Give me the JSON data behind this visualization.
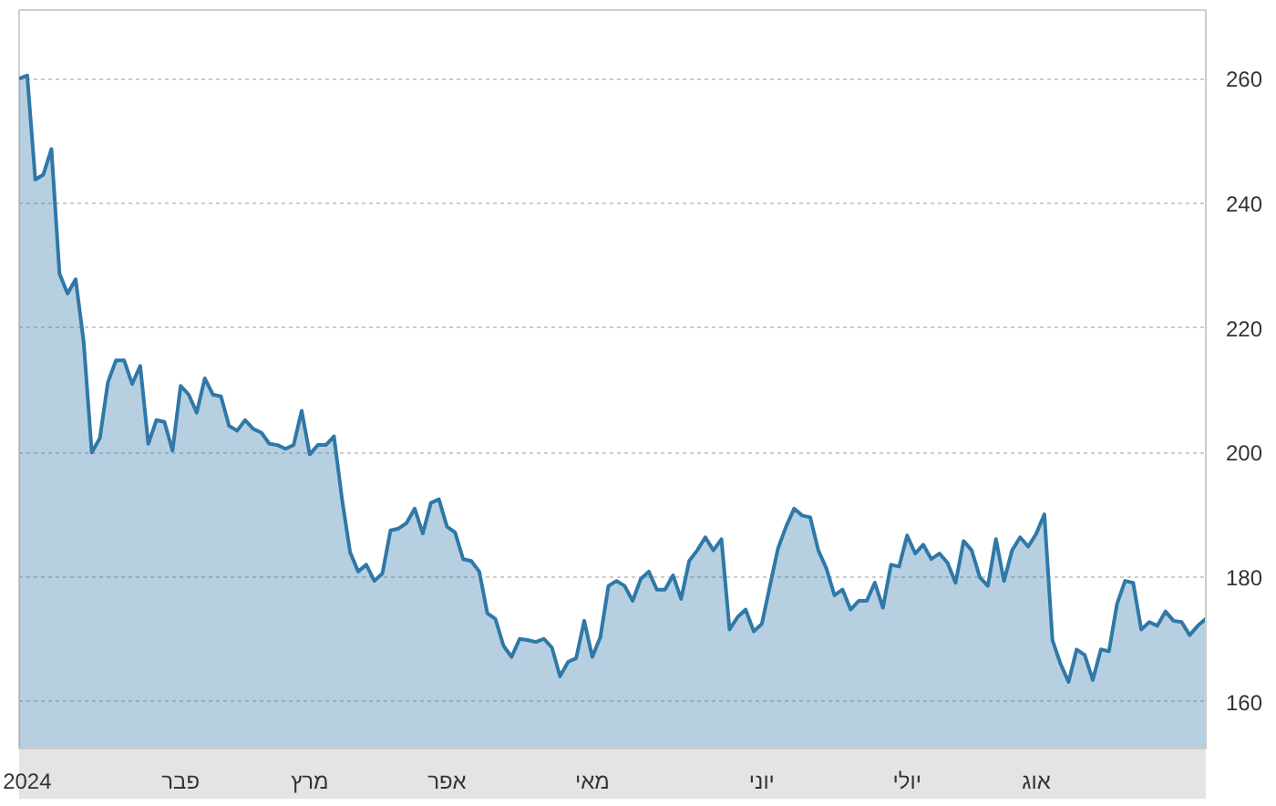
{
  "chart_data": {
    "type": "area",
    "categories": [
      null,
      "2024",
      null,
      null,
      null,
      null,
      null,
      null,
      null,
      null,
      null,
      null,
      null,
      null,
      null,
      null,
      null,
      null,
      null,
      null,
      "פבר",
      null,
      null,
      null,
      null,
      null,
      null,
      null,
      null,
      null,
      null,
      null,
      null,
      null,
      null,
      null,
      "מרץ",
      null,
      null,
      null,
      null,
      null,
      null,
      null,
      null,
      null,
      null,
      null,
      null,
      null,
      null,
      null,
      null,
      "אפר",
      null,
      null,
      null,
      null,
      null,
      null,
      null,
      null,
      null,
      null,
      null,
      null,
      null,
      null,
      null,
      null,
      null,
      "מאי",
      null,
      null,
      null,
      null,
      null,
      null,
      null,
      null,
      null,
      null,
      null,
      null,
      null,
      null,
      null,
      null,
      null,
      null,
      null,
      null,
      "יוני",
      null,
      null,
      null,
      null,
      null,
      null,
      null,
      null,
      null,
      null,
      null,
      null,
      null,
      null,
      null,
      null,
      null,
      "יולי",
      null,
      null,
      null,
      null,
      null,
      null,
      null,
      null,
      null,
      null,
      null,
      null,
      null,
      null,
      null,
      "אוג",
      null,
      null,
      null,
      null,
      null,
      null,
      null,
      null,
      null,
      null,
      null,
      null,
      null,
      null,
      null,
      null,
      null,
      null,
      null,
      null,
      null
    ],
    "series": [
      {
        "color": "#2f78a8",
        "values": [
          260,
          260.5,
          243.8,
          244.6,
          248.7,
          228.7,
          225.5,
          227.8,
          217.7,
          200,
          202.3,
          211.3,
          214.8,
          214.8,
          211,
          213.9,
          201.4,
          205.2,
          204.9,
          200.3,
          210.7,
          209.3,
          206.4,
          211.9,
          209.3,
          209,
          204.3,
          203.5,
          205.2,
          203.8,
          203.2,
          201.4,
          201.2,
          200.6,
          201.2,
          206.7,
          199.7,
          201.2,
          201.2,
          202.6,
          192.5,
          184,
          180.9,
          182,
          179.4,
          180.6,
          187.5,
          187.8,
          188.7,
          191,
          187,
          191.9,
          192.5,
          188.1,
          187.2,
          182.9,
          182.6,
          180.9,
          174.2,
          173.3,
          169,
          167.2,
          170.1,
          169.9,
          169.6,
          170.1,
          168.7,
          164.1,
          166.4,
          167,
          173,
          167.2,
          170.4,
          178.6,
          179.4,
          178.6,
          176.2,
          179.7,
          180.9,
          178,
          178,
          180.3,
          176.5,
          182.6,
          184.3,
          186.4,
          184.3,
          186.1,
          171.6,
          173.6,
          174.8,
          171.3,
          172.5,
          178.6,
          184.6,
          188.1,
          191,
          189.9,
          189.6,
          184.3,
          181.4,
          177.1,
          178,
          174.8,
          176.2,
          176.2,
          179.1,
          175.1,
          182,
          181.7,
          186.7,
          183.8,
          185.2,
          182.9,
          183.8,
          182.3,
          179.1,
          185.8,
          184.3,
          180,
          178.6,
          186.1,
          179.4,
          184.3,
          186.4,
          184.9,
          187,
          190.1,
          169.9,
          166.1,
          163.2,
          168.4,
          167.5,
          163.5,
          168.4,
          168.1,
          175.7,
          179.4,
          179.1,
          171.6,
          172.8,
          172.2,
          174.5,
          173,
          172.8,
          170.7,
          172.2,
          173.3
        ]
      }
    ],
    "ylim": [
      152.5,
      271
    ],
    "yticks": [
      160,
      180,
      200,
      220,
      240,
      260
    ],
    "grid": "y"
  }
}
